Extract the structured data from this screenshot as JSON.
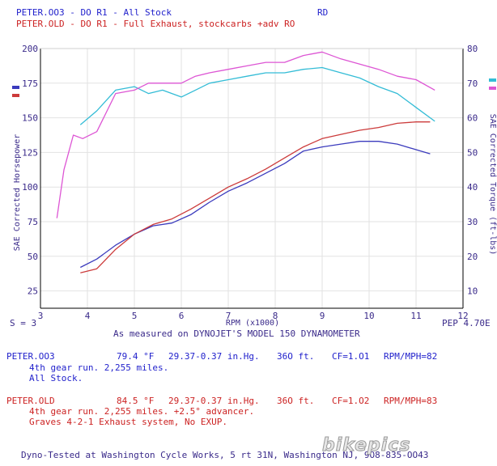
{
  "header": {
    "run1_line": "PETER.OO3 - DO R1 - All Stock",
    "run1_code": "RD",
    "run2_line": "PETER.OLD - DO R1 - Full Exhaust, stockcarbs +adv RO"
  },
  "chart_data": {
    "type": "line",
    "xlabel": "RPM (x1000)",
    "ylabel_left": "SAE Corrected Horsepower",
    "ylabel_right": "SAE Corrected Torque (ft-lbs)",
    "x_ticks": [
      "3",
      "4",
      "5",
      "6",
      "7",
      "8",
      "9",
      "10",
      "11",
      "12"
    ],
    "left_ticks": [
      "25",
      "50",
      "75",
      "100",
      "125",
      "150",
      "175",
      "200"
    ],
    "right_ticks": [
      "10",
      "20",
      "30",
      "40",
      "50",
      "60",
      "70",
      "80"
    ],
    "xlim": [
      3,
      12
    ],
    "ylim_left": [
      12.5,
      200
    ],
    "ylim_right": [
      5,
      80
    ],
    "grid": true,
    "series": [
      {
        "name": "PETER.OO3",
        "measure": "horsepower",
        "color": "#3b3bbd",
        "points": [
          [
            3.85,
            42
          ],
          [
            4.2,
            48
          ],
          [
            4.6,
            58
          ],
          [
            5.0,
            66
          ],
          [
            5.4,
            72
          ],
          [
            5.8,
            74
          ],
          [
            6.2,
            80
          ],
          [
            6.6,
            89
          ],
          [
            7.0,
            97
          ],
          [
            7.4,
            103
          ],
          [
            7.8,
            110
          ],
          [
            8.2,
            117
          ],
          [
            8.6,
            126
          ],
          [
            9.0,
            129
          ],
          [
            9.4,
            131
          ],
          [
            9.8,
            133
          ],
          [
            10.2,
            133
          ],
          [
            10.6,
            131
          ],
          [
            11.0,
            127
          ],
          [
            11.3,
            124
          ]
        ]
      },
      {
        "name": "PETER.OLD",
        "measure": "horsepower",
        "color": "#cc3b3b",
        "points": [
          [
            3.85,
            38
          ],
          [
            4.2,
            41
          ],
          [
            4.6,
            55
          ],
          [
            5.0,
            66
          ],
          [
            5.4,
            73
          ],
          [
            5.8,
            77
          ],
          [
            6.2,
            84
          ],
          [
            6.6,
            92
          ],
          [
            7.0,
            100
          ],
          [
            7.4,
            106
          ],
          [
            7.8,
            113
          ],
          [
            8.2,
            121
          ],
          [
            8.6,
            129
          ],
          [
            9.0,
            135
          ],
          [
            9.4,
            138
          ],
          [
            9.8,
            141
          ],
          [
            10.2,
            143
          ],
          [
            10.6,
            146
          ],
          [
            11.0,
            147
          ],
          [
            11.3,
            147
          ]
        ]
      },
      {
        "name": "PETER.OO3",
        "measure": "torque",
        "color": "#33bcd6",
        "points": [
          [
            3.85,
            58
          ],
          [
            4.2,
            62
          ],
          [
            4.6,
            68
          ],
          [
            5.0,
            69
          ],
          [
            5.3,
            67
          ],
          [
            5.6,
            68
          ],
          [
            6.0,
            66
          ],
          [
            6.3,
            68
          ],
          [
            6.6,
            70
          ],
          [
            7.0,
            71
          ],
          [
            7.4,
            72
          ],
          [
            7.8,
            73
          ],
          [
            8.2,
            73
          ],
          [
            8.6,
            74
          ],
          [
            9.0,
            74.5
          ],
          [
            9.4,
            73
          ],
          [
            9.8,
            71.5
          ],
          [
            10.2,
            69
          ],
          [
            10.6,
            67
          ],
          [
            11.0,
            63
          ],
          [
            11.4,
            59
          ]
        ]
      },
      {
        "name": "PETER.OLD",
        "measure": "torque",
        "color": "#dd55d4",
        "points": [
          [
            3.35,
            31
          ],
          [
            3.5,
            45
          ],
          [
            3.7,
            55
          ],
          [
            3.9,
            54
          ],
          [
            4.2,
            56
          ],
          [
            4.6,
            67
          ],
          [
            5.0,
            68
          ],
          [
            5.3,
            70
          ],
          [
            5.6,
            70
          ],
          [
            6.0,
            70
          ],
          [
            6.3,
            72
          ],
          [
            6.6,
            73
          ],
          [
            7.0,
            74
          ],
          [
            7.4,
            75
          ],
          [
            7.8,
            76
          ],
          [
            8.2,
            76
          ],
          [
            8.6,
            78
          ],
          [
            9.0,
            79
          ],
          [
            9.4,
            77
          ],
          [
            9.8,
            75.5
          ],
          [
            10.2,
            74
          ],
          [
            10.6,
            72
          ],
          [
            11.0,
            71
          ],
          [
            11.4,
            68
          ]
        ]
      }
    ]
  },
  "footer_left": "S = 3",
  "footer_right": "PEP 4.70E",
  "measured_line": "As measured on DYNOJET'S MODEL 150 DYNAMOMETER",
  "runs": [
    {
      "name": "PETER.OO3",
      "temp": "79.4 °F",
      "baro": "29.37-0.37 in.Hg.",
      "elev": "36O ft.",
      "cf": "CF=1.O1",
      "ratio": "RPM/MPH=82",
      "note1": "4th gear run. 2,255 miles.",
      "note2": "All Stock."
    },
    {
      "name": "PETER.OLD",
      "temp": "84.5 °F",
      "baro": "29.37-0.37 in.Hg.",
      "elev": "36O ft.",
      "cf": "CF=1.O2",
      "ratio": "RPM/MPH=83",
      "note1": "4th gear run. 2,255 miles. +2.5° advancer.",
      "note2": "Graves 4-2-1 Exhaust system, No EXUP."
    }
  ],
  "bottom_line": "Dyno-Tested at Washington Cycle Works, 5 rt 31N, Washington NJ, 9O8-835-OO43",
  "watermark": "bikepics",
  "colors": {
    "run1_text": "#2222cc",
    "run2_text": "#cc2222",
    "grid": "#e2e2e2",
    "axis": "#000000"
  }
}
